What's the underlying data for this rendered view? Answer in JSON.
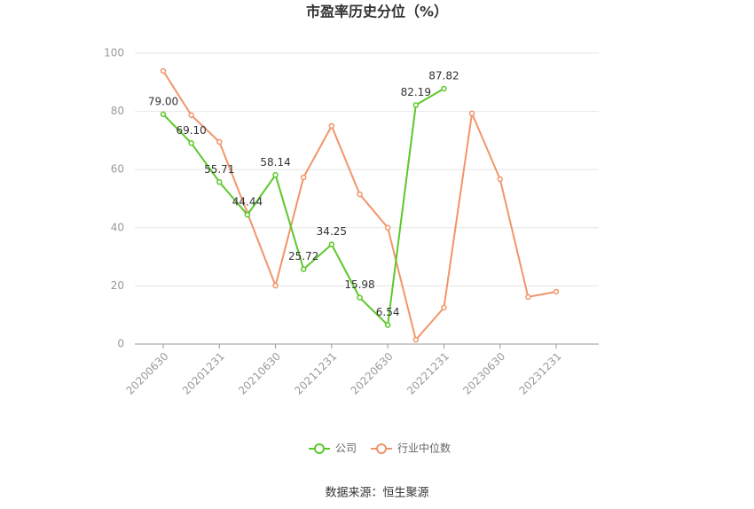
{
  "chart_data": {
    "type": "line",
    "title": "市盈率历史分位（%）",
    "categories": [
      "20200630",
      null,
      "20201231",
      null,
      "20210630",
      null,
      "20211231",
      null,
      "20220630",
      null,
      "20221231",
      null,
      "20230630",
      null,
      "20231231"
    ],
    "series": [
      {
        "name": "公司",
        "color": "#5cc82a",
        "values": [
          79.0,
          69.1,
          55.71,
          44.44,
          58.14,
          25.72,
          34.25,
          15.98,
          6.54,
          82.19,
          87.82,
          null,
          null,
          null,
          null
        ],
        "value_labels": [
          "79.00",
          "69.10",
          "55.71",
          "44.44",
          "58.14",
          "25.72",
          "34.25",
          "15.98",
          "6.54",
          "82.19",
          "87.82",
          null,
          null,
          null,
          null
        ]
      },
      {
        "name": "行业中位数",
        "color": "#f0956a",
        "values": [
          93.9,
          78.7,
          69.5,
          45,
          20.1,
          57.3,
          75,
          51.5,
          40,
          1.5,
          12.5,
          79.3,
          56.7,
          16.2,
          18
        ]
      }
    ],
    "ylim": [
      0,
      100
    ],
    "yticks": [
      0,
      20,
      40,
      60,
      80,
      100
    ],
    "grid": true,
    "legend": "bottom",
    "source": "数据来源：恒生聚源"
  }
}
